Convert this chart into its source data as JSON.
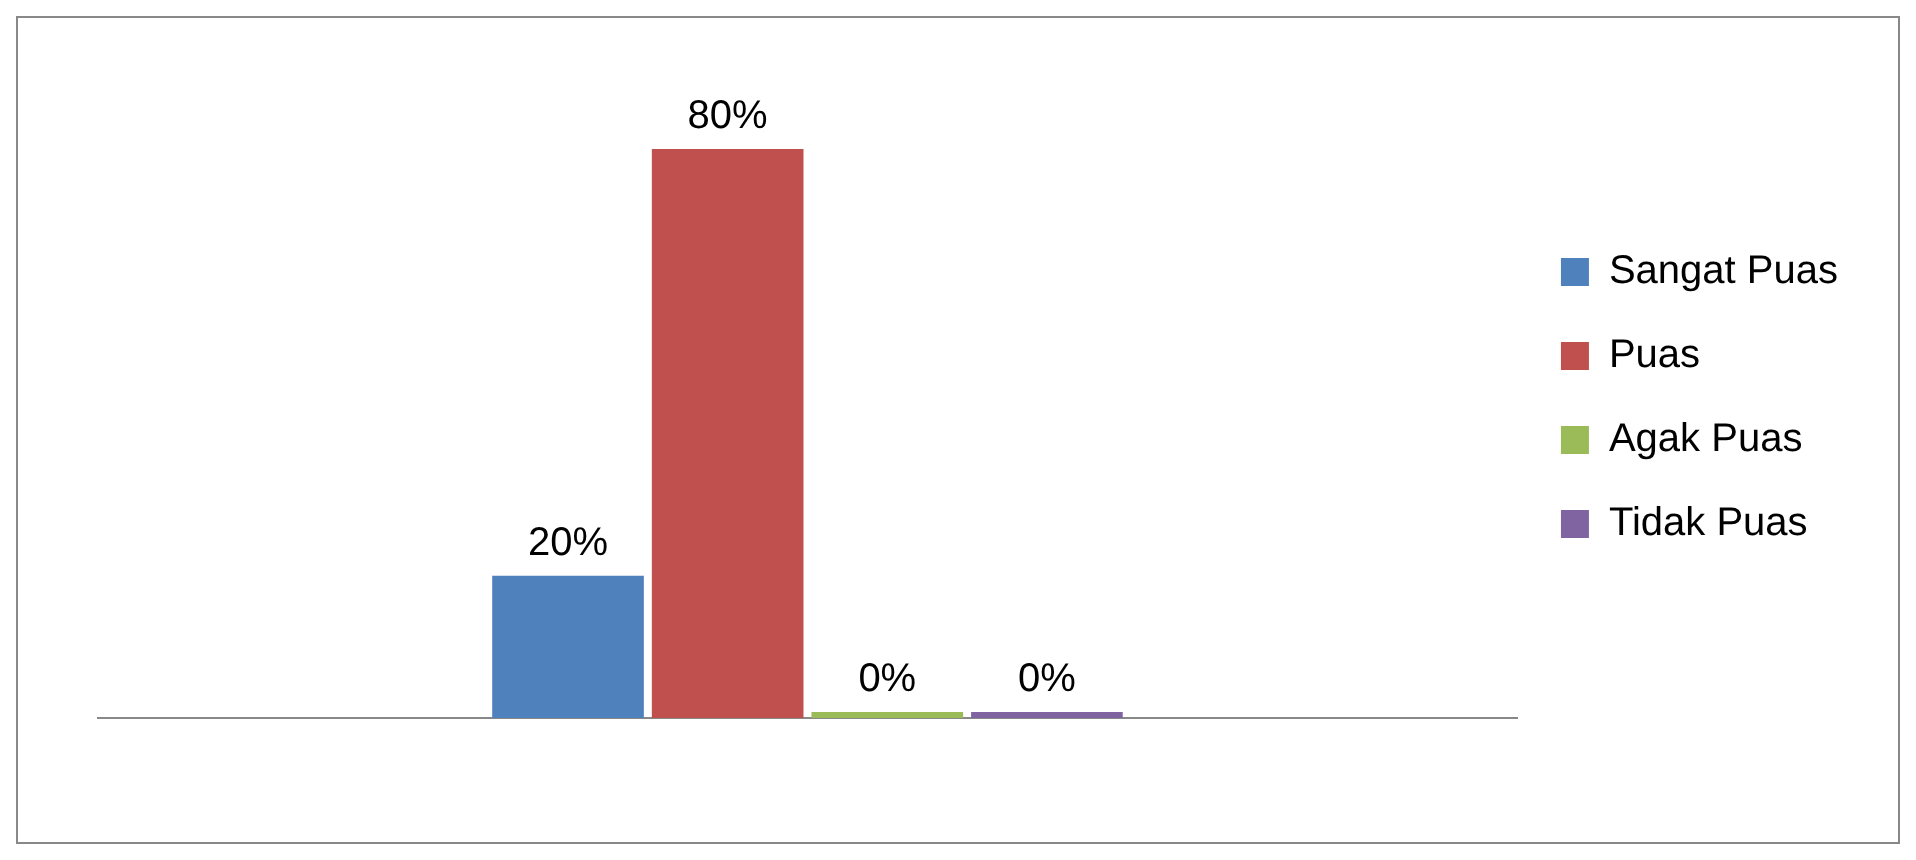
{
  "chart_data": {
    "type": "bar",
    "categories": [
      null
    ],
    "legend": "right",
    "grid": false,
    "series": [
      {
        "name": "Sangat Puas",
        "color": "#4f81bd",
        "values": [
          20
        ],
        "value_labels": [
          "20%"
        ]
      },
      {
        "name": "Puas",
        "color": "#c0504d",
        "values": [
          80
        ],
        "value_labels": [
          "80%"
        ]
      },
      {
        "name": "Agak Puas",
        "color": "#9bbb59",
        "values": [
          0
        ],
        "value_labels": [
          "0%"
        ]
      },
      {
        "name": "Tidak Puas",
        "color": "#8064a2",
        "values": [
          0
        ],
        "value_labels": [
          "0%"
        ]
      }
    ]
  }
}
